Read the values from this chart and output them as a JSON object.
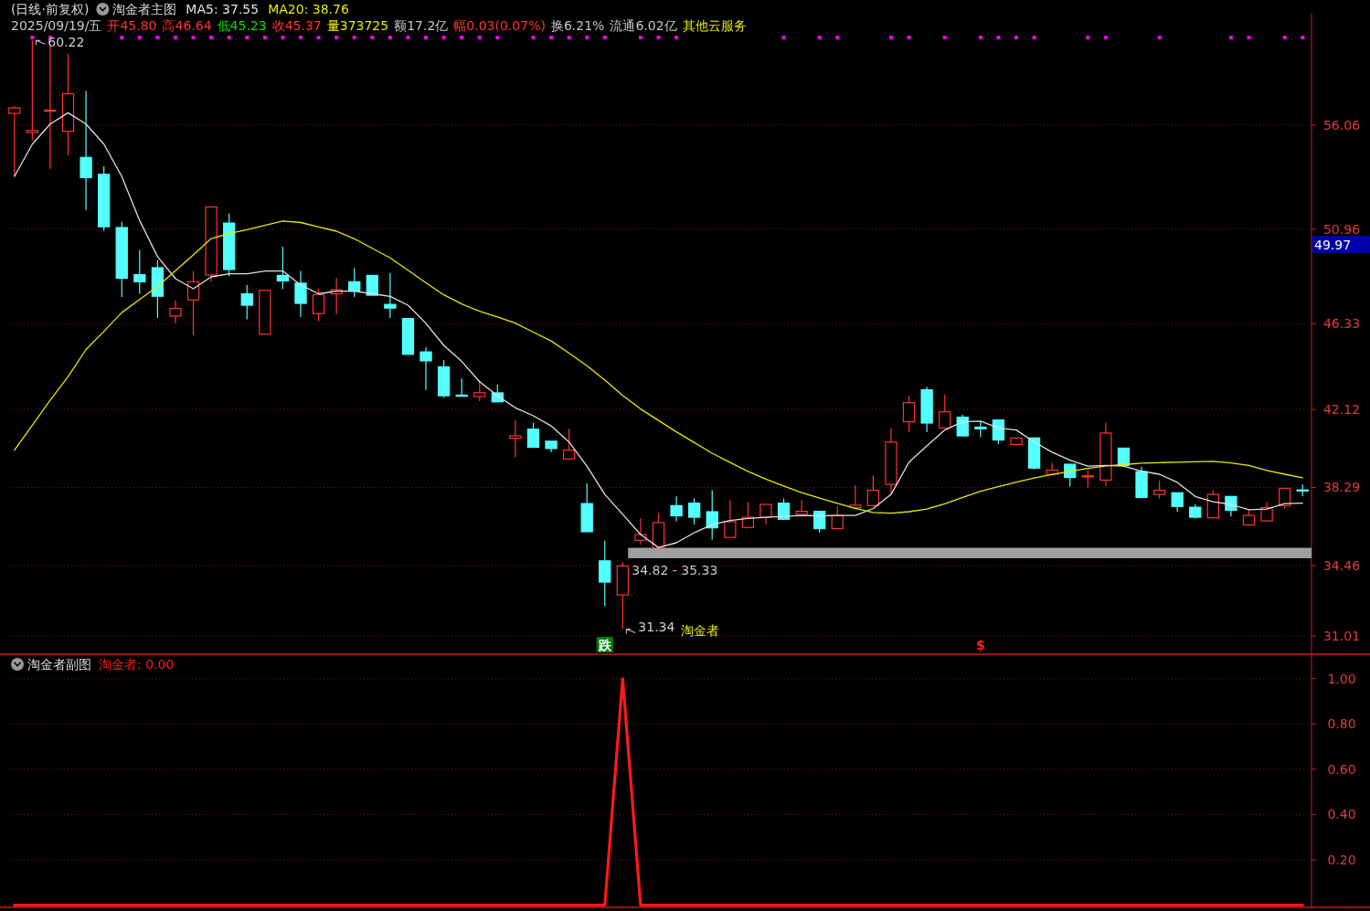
{
  "chart_data": [
    {
      "type": "candlestick",
      "title": "(日线·前复权)",
      "subtitle": "淘金者主图",
      "categories": [
        null,
        null,
        null,
        null,
        null,
        null,
        null,
        null,
        null,
        null,
        null,
        null,
        null,
        null,
        null,
        null,
        null,
        null,
        null,
        null,
        null,
        null,
        null,
        null,
        null,
        null,
        null,
        null,
        null,
        null,
        null,
        null,
        null,
        null,
        null,
        null,
        null,
        null,
        null,
        null,
        null,
        null,
        null,
        null,
        null,
        null,
        null,
        null,
        null,
        null,
        null,
        null,
        null,
        null,
        null,
        null,
        null,
        null,
        null,
        null,
        null,
        null,
        null,
        null,
        null,
        null,
        null,
        null,
        null,
        null,
        null,
        null,
        null
      ],
      "ohlc": [
        [
          56.64,
          57.0,
          53.55,
          56.91
        ],
        [
          55.7,
          60.22,
          55.34,
          55.8
        ],
        [
          56.75,
          60.07,
          53.91,
          56.8
        ],
        [
          55.76,
          59.57,
          54.58,
          57.6
        ],
        [
          54.48,
          57.74,
          51.89,
          53.49
        ],
        [
          53.65,
          54.04,
          50.88,
          51.08
        ],
        [
          51.04,
          51.32,
          47.63,
          48.55
        ],
        [
          48.73,
          49.94,
          47.79,
          48.38
        ],
        [
          49.07,
          49.44,
          46.6,
          47.67
        ],
        [
          46.7,
          47.47,
          46.34,
          47.07
        ],
        [
          47.49,
          48.89,
          45.75,
          48.38
        ],
        [
          48.71,
          52.05,
          48.38,
          52.05
        ],
        [
          51.26,
          51.73,
          48.66,
          48.98
        ],
        [
          47.79,
          48.22,
          46.54,
          47.23
        ],
        [
          45.81,
          47.96,
          45.81,
          47.96
        ],
        [
          48.69,
          50.1,
          48.02,
          48.42
        ],
        [
          48.31,
          48.91,
          46.65,
          47.32
        ],
        [
          46.82,
          48.04,
          46.44,
          47.75
        ],
        [
          47.79,
          48.57,
          46.78,
          47.99
        ],
        [
          48.38,
          49.05,
          47.63,
          47.92
        ],
        [
          48.69,
          48.69,
          47.72,
          47.72
        ],
        [
          47.27,
          48.81,
          46.6,
          47.09
        ],
        [
          46.58,
          46.58,
          44.82,
          44.82
        ],
        [
          44.94,
          45.17,
          43.08,
          44.5
        ],
        [
          44.21,
          44.54,
          42.69,
          42.79
        ],
        [
          42.82,
          43.64,
          42.79,
          42.79
        ],
        [
          42.75,
          43.55,
          42.53,
          42.94
        ],
        [
          42.93,
          43.33,
          42.49,
          42.49
        ],
        [
          40.7,
          41.6,
          39.77,
          40.82
        ],
        [
          41.15,
          41.47,
          40.26,
          40.26
        ],
        [
          40.56,
          40.56,
          40.02,
          40.2
        ],
        [
          39.69,
          41.17,
          39.69,
          40.12
        ],
        [
          37.5,
          38.49,
          36.12,
          36.12
        ],
        [
          34.69,
          35.68,
          32.46,
          33.65
        ],
        [
          33.02,
          34.64,
          31.34,
          34.44
        ],
        [
          35.7,
          36.8,
          35.49,
          35.98
        ],
        [
          35.33,
          37.04,
          35.33,
          36.57
        ],
        [
          37.4,
          37.85,
          36.63,
          36.9
        ],
        [
          37.52,
          37.75,
          36.47,
          36.83
        ],
        [
          37.1,
          38.15,
          35.74,
          36.31
        ],
        [
          35.84,
          37.66,
          35.84,
          36.61
        ],
        [
          36.33,
          37.56,
          36.33,
          36.83
        ],
        [
          36.83,
          37.46,
          36.47,
          37.46
        ],
        [
          37.52,
          37.75,
          36.73,
          36.73
        ],
        [
          36.97,
          37.66,
          36.97,
          37.12
        ],
        [
          37.12,
          37.12,
          36.07,
          36.27
        ],
        [
          36.27,
          37.37,
          36.27,
          36.92
        ],
        [
          37.3,
          38.39,
          37.3,
          37.42
        ],
        [
          37.4,
          38.88,
          37.4,
          38.15
        ],
        [
          38.44,
          41.21,
          37.93,
          40.52
        ],
        [
          41.51,
          42.79,
          41.01,
          42.45
        ],
        [
          43.08,
          43.22,
          41.01,
          41.45
        ],
        [
          41.21,
          42.85,
          41.21,
          42.0
        ],
        [
          41.74,
          41.86,
          40.82,
          40.82
        ],
        [
          41.25,
          41.51,
          40.75,
          41.17
        ],
        [
          41.6,
          41.6,
          40.42,
          40.62
        ],
        [
          40.4,
          40.72,
          40.33,
          40.72
        ],
        [
          40.72,
          40.72,
          39.18,
          39.24
        ],
        [
          38.94,
          39.5,
          38.94,
          39.14
        ],
        [
          39.43,
          39.43,
          38.35,
          38.78
        ],
        [
          38.82,
          39.14,
          38.25,
          38.86
        ],
        [
          38.65,
          41.47,
          38.35,
          40.96
        ],
        [
          40.22,
          40.22,
          39.3,
          39.37
        ],
        [
          39.07,
          39.3,
          37.8,
          37.8
        ],
        [
          37.95,
          38.64,
          37.75,
          38.15
        ],
        [
          38.03,
          38.03,
          37.1,
          37.36
        ],
        [
          37.32,
          37.46,
          36.77,
          36.83
        ],
        [
          36.8,
          38.15,
          36.8,
          37.95
        ],
        [
          37.85,
          37.85,
          36.87,
          37.17
        ],
        [
          36.45,
          37.2,
          36.45,
          36.92
        ],
        [
          36.65,
          37.56,
          36.65,
          37.3
        ],
        [
          37.4,
          38.25,
          37.26,
          38.25
        ],
        [
          38.17,
          38.44,
          37.86,
          38.13
        ]
      ],
      "colors": [
        "#ff3232",
        "#ff3232",
        "#ff3232",
        "#ff3232",
        "#54ffff",
        "#54ffff",
        "#54ffff",
        "#54ffff",
        "#54ffff",
        "#ff3232",
        "#ff3232",
        "#ff3232",
        "#54ffff",
        "#54ffff",
        "#ff3232",
        "#54ffff",
        "#54ffff",
        "#ff3232",
        "#ff3232",
        "#54ffff",
        "#54ffff",
        "#54ffff",
        "#54ffff",
        "#54ffff",
        "#54ffff",
        "#54ffff",
        "#ff3232",
        "#54ffff",
        "#ff3232",
        "#54ffff",
        "#54ffff",
        "#ff3232",
        "#54ffff",
        "#54ffff",
        "#ff3232",
        "#ff3232",
        "#ff3232",
        "#54ffff",
        "#54ffff",
        "#54ffff",
        "#ff3232",
        "#ff3232",
        "#ff3232",
        "#54ffff",
        "#ff3232",
        "#54ffff",
        "#ff3232",
        "#ff3232",
        "#ff3232",
        "#ff3232",
        "#ff3232",
        "#54ffff",
        "#ff3232",
        "#54ffff",
        "#54ffff",
        "#54ffff",
        "#ff3232",
        "#54ffff",
        "#ff3232",
        "#54ffff",
        "#ff3232",
        "#ff3232",
        "#54ffff",
        "#54ffff",
        "#ff3232",
        "#54ffff",
        "#54ffff",
        "#ff3232",
        "#54ffff",
        "#ff3232",
        "#ff3232",
        "#ff3232",
        "#54ffff"
      ],
      "series": [
        {
          "name": "MA5: 37.55",
          "type": "line",
          "color": "#e0e0e0",
          "values": [
            53.55,
            55.13,
            56.12,
            56.67,
            56.12,
            55.13,
            53.55,
            51.38,
            49.61,
            48.53,
            48.04,
            48.62,
            48.77,
            48.77,
            48.91,
            48.91,
            48.22,
            47.79,
            47.92,
            47.92,
            47.79,
            47.66,
            47.23,
            46.34,
            45.26,
            44.47,
            43.48,
            42.79,
            42.2,
            41.81,
            41.31,
            40.52,
            39.34,
            37.95,
            36.97,
            35.98,
            35.35,
            35.58,
            36.07,
            36.47,
            36.67,
            36.77,
            36.83,
            36.87,
            36.92,
            36.9,
            36.92,
            36.92,
            37.26,
            37.95,
            39.53,
            40.33,
            41.11,
            41.51,
            41.55,
            41.21,
            41.11,
            40.52,
            40.02,
            39.63,
            39.34,
            39.37,
            39.34,
            39.09,
            38.94,
            38.54,
            37.85,
            37.59,
            37.46,
            37.2,
            37.23,
            37.5,
            37.52
          ]
        },
        {
          "name": "MA20: 38.76",
          "type": "line",
          "color": "#e8e800",
          "values": [
            40.12,
            41.34,
            42.58,
            43.73,
            45.06,
            45.95,
            46.87,
            47.51,
            48.15,
            48.92,
            49.7,
            50.5,
            50.75,
            50.94,
            51.15,
            51.36,
            51.29,
            51.07,
            50.86,
            50.49,
            50.02,
            49.55,
            48.95,
            48.33,
            47.74,
            47.29,
            46.93,
            46.66,
            46.35,
            45.91,
            45.48,
            44.88,
            44.26,
            43.55,
            42.81,
            42.14,
            41.58,
            41.02,
            40.49,
            39.97,
            39.52,
            39.08,
            38.7,
            38.36,
            38.04,
            37.77,
            37.51,
            37.27,
            37.06,
            37.03,
            37.1,
            37.23,
            37.49,
            37.8,
            38.1,
            38.33,
            38.55,
            38.75,
            38.92,
            39.08,
            39.22,
            39.35,
            39.41,
            39.48,
            39.51,
            39.53,
            39.55,
            39.57,
            39.49,
            39.37,
            39.13,
            38.94,
            38.77
          ]
        },
        {
          "type": "scatter",
          "color": "#ff00ff",
          "marker": "square",
          "values": [
            null,
            60.36,
            60.36,
            null,
            null,
            null,
            60.36,
            60.36,
            60.36,
            60.36,
            60.36,
            60.36,
            60.36,
            60.36,
            60.36,
            60.36,
            60.36,
            60.36,
            60.36,
            60.36,
            60.36,
            60.36,
            60.36,
            60.36,
            60.36,
            60.36,
            60.36,
            60.36,
            null,
            60.36,
            60.36,
            60.36,
            60.36,
            60.36,
            null,
            60.36,
            60.36,
            60.36,
            null,
            null,
            null,
            null,
            null,
            60.36,
            null,
            60.36,
            60.36,
            null,
            null,
            60.36,
            60.36,
            null,
            60.36,
            null,
            60.36,
            60.36,
            60.36,
            60.36,
            null,
            null,
            60.36,
            60.36,
            null,
            null,
            60.36,
            null,
            null,
            null,
            60.36,
            60.36,
            null,
            60.36,
            60.36
          ]
        }
      ],
      "ylim": [
        30.11,
        61.44
      ],
      "yticks": [
        {
          "value": 56.06,
          "label": "56.06"
        },
        {
          "value": 50.96,
          "label": "50.96"
        },
        {
          "value": 46.33,
          "label": "46.33"
        },
        {
          "value": 42.12,
          "label": "42.12"
        },
        {
          "value": 38.29,
          "label": "38.29"
        },
        {
          "value": 34.46,
          "label": "34.46"
        },
        {
          "value": 31.01,
          "label": "31.01"
        }
      ],
      "bands": [
        {
          "axis": "y",
          "from": 34.82,
          "to": 35.33,
          "label": "34.82 - 35.33",
          "color": "#a0a0a0"
        }
      ],
      "annotations": [
        "2025/09/19/五",
        "开45.80",
        "高46.64",
        "低45.23",
        "收45.37",
        "量373725",
        "额17.2亿",
        "幅0.03(0.07%)",
        "换6.21%",
        "流通6.02亿",
        "其他云服务",
        "60.22",
        "31.34",
        "淘金者",
        "49.97",
        "跌",
        "$"
      ],
      "grid": "y",
      "legend": "top left",
      "tick_labels": "y"
    },
    {
      "type": "line",
      "title": "淘金者副图",
      "categories": [
        null,
        null,
        null,
        null,
        null,
        null,
        null,
        null,
        null,
        null,
        null,
        null,
        null,
        null,
        null,
        null,
        null,
        null,
        null,
        null,
        null,
        null,
        null,
        null,
        null,
        null,
        null,
        null,
        null,
        null,
        null,
        null,
        null,
        null,
        null,
        null,
        null,
        null,
        null,
        null,
        null,
        null,
        null,
        null,
        null,
        null,
        null,
        null,
        null,
        null,
        null,
        null,
        null,
        null,
        null,
        null,
        null,
        null,
        null,
        null,
        null,
        null,
        null,
        null,
        null,
        null,
        null,
        null,
        null,
        null,
        null,
        null,
        null
      ],
      "series": [
        {
          "name": "淘金者: 0.00",
          "color": "#ff1a1a",
          "values": [
            0,
            0,
            0,
            0,
            0,
            0,
            0,
            0,
            0,
            0,
            0,
            0,
            0,
            0,
            0,
            0,
            0,
            0,
            0,
            0,
            0,
            0,
            0,
            0,
            0,
            0,
            0,
            0,
            0,
            0,
            0,
            0,
            0,
            0,
            1,
            0,
            0,
            0,
            0,
            0,
            0,
            0,
            0,
            0,
            0,
            0,
            0,
            0,
            0,
            0,
            0,
            0,
            0,
            0,
            0,
            0,
            0,
            0,
            0,
            0,
            0,
            0,
            0,
            0,
            0,
            0,
            0,
            0,
            0,
            0,
            0,
            0,
            0
          ]
        }
      ],
      "ylim": [
        -0.01,
        1.1
      ],
      "yticks": [
        {
          "value": 0.2,
          "label": "0.20"
        },
        {
          "value": 0.4,
          "label": "0.40"
        },
        {
          "value": 0.6,
          "label": "0.60"
        },
        {
          "value": 0.8,
          "label": "0.80"
        },
        {
          "value": 1.0,
          "label": "1.00"
        }
      ],
      "grid": "y",
      "legend": "top left",
      "tick_labels": "y"
    }
  ]
}
